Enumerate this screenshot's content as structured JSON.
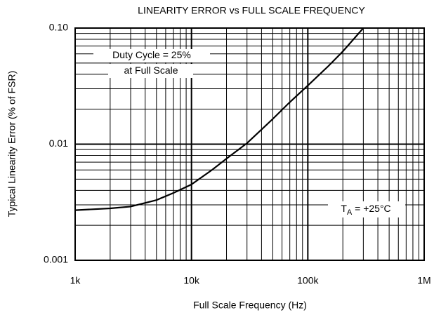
{
  "chart_data": {
    "type": "line",
    "title": "LINEARITY ERROR vs FULL SCALE FREQUENCY",
    "x_label": "Full Scale Frequency (Hz)",
    "y_label": "Typical Linearity Error (% of FSR)",
    "x_log": true,
    "y_log": true,
    "grid": true,
    "x": [
      1000,
      2000,
      3000,
      5000,
      7000,
      10000,
      15000,
      20000,
      30000,
      50000,
      70000,
      100000,
      150000,
      200000,
      300000
    ],
    "series": [
      {
        "name": null,
        "color": "#000000",
        "values": [
          0.0027,
          0.0028,
          0.0029,
          0.0033,
          0.0038,
          0.0045,
          0.006,
          0.0075,
          0.0102,
          0.0165,
          0.023,
          0.032,
          0.047,
          0.063,
          0.1
        ]
      }
    ],
    "xlim": [
      1000,
      1000000
    ],
    "ylim": [
      0.001,
      0.1
    ],
    "xticks": [
      {
        "value": 1000,
        "label": "1k"
      },
      {
        "value": 10000,
        "label": "10k"
      },
      {
        "value": 100000,
        "label": "100k"
      },
      {
        "value": 1000000,
        "label": "1M"
      }
    ],
    "yticks": [
      0.001,
      0.01,
      {
        "value": 0.1,
        "label": "0.10"
      }
    ],
    "annotations": [
      {
        "text": "Duty Cycle = 25%"
      },
      {
        "text": "at Full Scale"
      },
      {
        "text": "T",
        "subscript": "A",
        "suffix": " = +25°C"
      }
    ]
  }
}
